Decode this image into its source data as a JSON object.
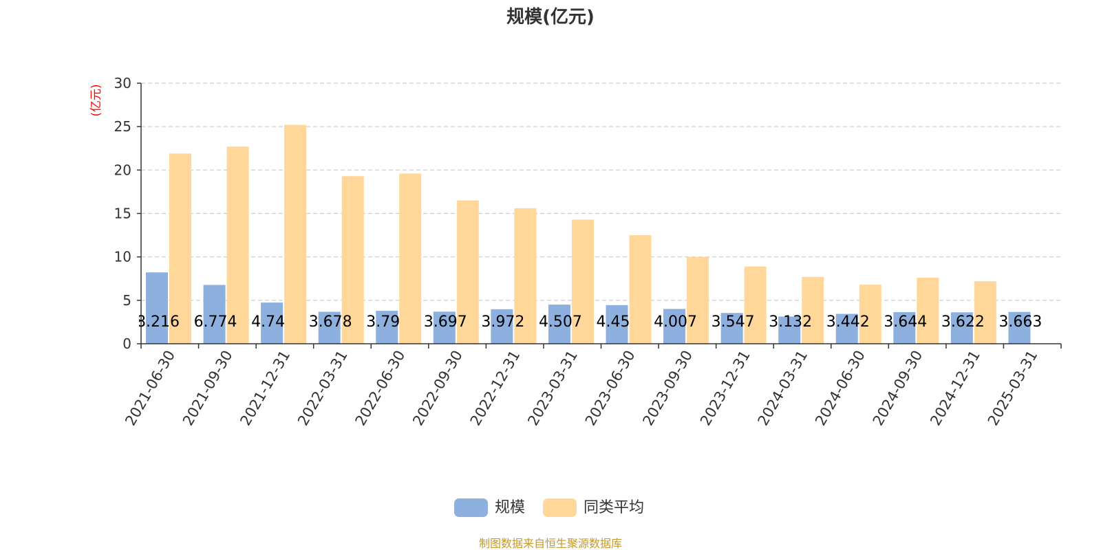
{
  "chart_data": {
    "type": "bar",
    "title": "规模(亿元)",
    "ylabel": "(亿元)",
    "ylim": [
      0,
      30
    ],
    "yticks": [
      0,
      5,
      10,
      15,
      20,
      25,
      30
    ],
    "grid": true,
    "legend_position": "bottom",
    "categories": [
      "2021-06-30",
      "2021-09-30",
      "2021-12-31",
      "2022-03-31",
      "2022-06-30",
      "2022-09-30",
      "2022-12-31",
      "2023-03-31",
      "2023-06-30",
      "2023-09-30",
      "2023-12-31",
      "2024-03-31",
      "2024-06-30",
      "2024-09-30",
      "2024-12-31",
      "2025-03-31"
    ],
    "series": [
      {
        "name": "规模",
        "color": "#8eb0de",
        "values": [
          8.216,
          6.774,
          4.74,
          3.678,
          3.79,
          3.697,
          3.972,
          4.507,
          4.45,
          4.007,
          3.547,
          3.132,
          3.442,
          3.644,
          3.622,
          3.663
        ],
        "labels": [
          "8.216",
          "6.774",
          "4.74",
          "3.678",
          "3.79",
          "3.697",
          "3.972",
          "4.507",
          "4.45",
          "4.007",
          "3.547",
          "3.132",
          "3.442",
          "3.644",
          "3.622",
          "3.663"
        ]
      },
      {
        "name": "同类平均",
        "color": "#ffd899",
        "values": [
          21.9,
          22.7,
          25.2,
          19.3,
          19.6,
          16.5,
          15.6,
          14.3,
          12.5,
          10.0,
          8.9,
          7.7,
          6.8,
          7.6,
          7.2,
          null
        ]
      }
    ],
    "source": "制图数据来自恒生聚源数据库"
  }
}
